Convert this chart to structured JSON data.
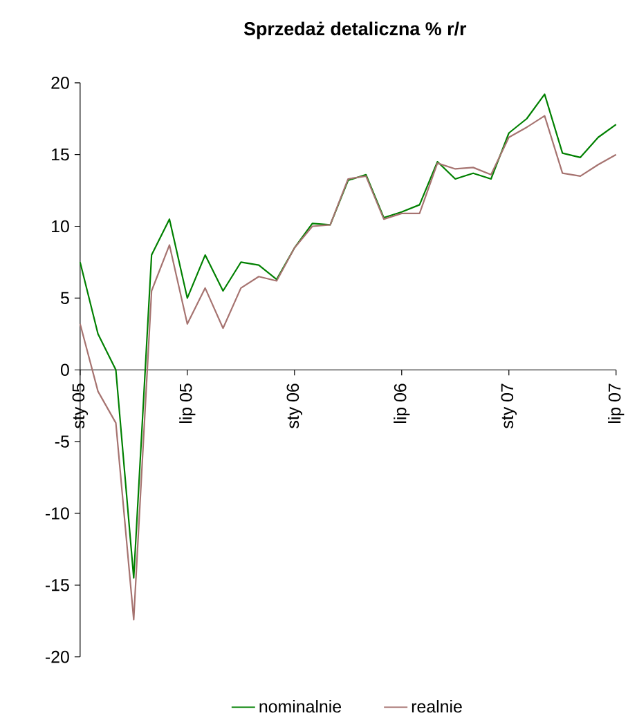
{
  "chart_data": {
    "type": "line",
    "title": "Sprzedaż detaliczna % r/r",
    "x": [
      "2005-01",
      "2005-02",
      "2005-03",
      "2005-04",
      "2005-05",
      "2005-06",
      "2005-07",
      "2005-08",
      "2005-09",
      "2005-10",
      "2005-11",
      "2005-12",
      "2006-01",
      "2006-02",
      "2006-03",
      "2006-04",
      "2006-05",
      "2006-06",
      "2006-07",
      "2006-08",
      "2006-09",
      "2006-10",
      "2006-11",
      "2006-12",
      "2007-01",
      "2007-02",
      "2007-03",
      "2007-04",
      "2007-05",
      "2007-06",
      "2007-07"
    ],
    "series": [
      {
        "name": "nominalnie",
        "color": "#008000",
        "values": [
          7.5,
          2.5,
          0,
          -14.5,
          8.0,
          10.5,
          5.0,
          8.0,
          5.5,
          7.5,
          7.3,
          6.3,
          8.5,
          10.2,
          10.1,
          13.2,
          13.6,
          10.6,
          11.0,
          11.5,
          14.5,
          13.3,
          13.7,
          13.3,
          16.5,
          17.5,
          19.2,
          15.1,
          14.8,
          16.2,
          17.1
        ]
      },
      {
        "name": "realnie",
        "color": "#a67370",
        "values": [
          3.2,
          -1.5,
          -3.7,
          -17.4,
          5.5,
          8.7,
          3.2,
          5.7,
          2.9,
          5.7,
          6.5,
          6.2,
          8.5,
          10.0,
          10.1,
          13.3,
          13.5,
          10.5,
          10.9,
          10.9,
          14.4,
          14.0,
          14.1,
          13.6,
          16.2,
          16.9,
          17.7,
          13.7,
          13.5,
          14.3,
          15.0
        ]
      }
    ],
    "xlim": [
      "2005-01",
      "2007-07"
    ],
    "xticks": [
      {
        "value": "2005-01",
        "label": "sty 05"
      },
      {
        "value": "2005-07",
        "label": "lip 05"
      },
      {
        "value": "2006-01",
        "label": "sty 06"
      },
      {
        "value": "2006-07",
        "label": "lip 06"
      },
      {
        "value": "2007-01",
        "label": "sty 07"
      },
      {
        "value": "2007-07",
        "label": "lip 07"
      }
    ],
    "ylim": [
      -20,
      20
    ],
    "yticks": [
      -20,
      -15,
      -10,
      -5,
      0,
      5,
      10,
      15,
      20
    ],
    "legend": "bottom",
    "grid": false,
    "marker": "none",
    "line_style": "solid"
  }
}
